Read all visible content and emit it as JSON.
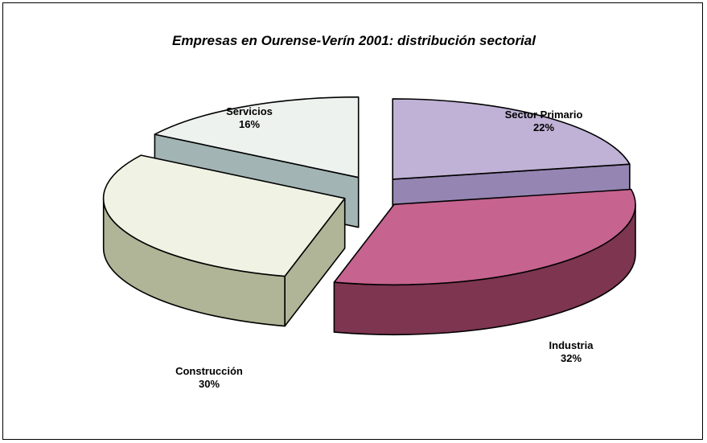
{
  "chart_data": {
    "type": "pie",
    "style": "3d-exploded",
    "title": "Empresas en Ourense-Verín 2001: distribución sectorial",
    "legend": "none",
    "data_labels": "category-and-percent",
    "slices": [
      {
        "label": "Sector Primario",
        "value": 22,
        "percent_text": "22%",
        "top_color": "#C0B2D6",
        "side_color": "#9585B2"
      },
      {
        "label": "Industria",
        "value": 32,
        "percent_text": "32%",
        "top_color": "#C6638F",
        "side_color": "#7D3550"
      },
      {
        "label": "Construcción",
        "value": 30,
        "percent_text": "30%",
        "top_color": "#F0F2E4",
        "side_color": "#AFB596"
      },
      {
        "label": "Servicios",
        "value": 16,
        "percent_text": "16%",
        "top_color": "#EDF2EF",
        "side_color": "#A2B4B4"
      }
    ]
  }
}
